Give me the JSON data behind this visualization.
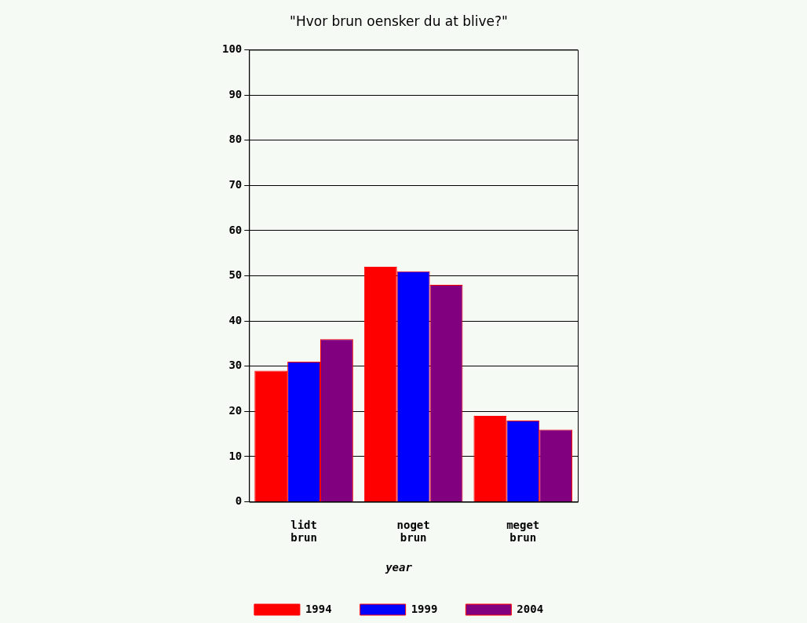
{
  "chart_data": {
    "type": "bar",
    "title": "\"Hvor brun oensker du at blive?\"",
    "categories": [
      "lidt brun",
      "noget brun",
      "meget brun"
    ],
    "series": [
      {
        "name": "1994",
        "color": "#ff0000",
        "values": [
          29,
          52,
          19
        ]
      },
      {
        "name": "1999",
        "color": "#0000ff",
        "values": [
          31,
          51,
          18
        ]
      },
      {
        "name": "2004",
        "color": "#800080",
        "values": [
          36,
          48,
          16
        ]
      }
    ],
    "ylim": [
      0,
      100
    ],
    "yticks": [
      0,
      10,
      20,
      30,
      40,
      50,
      60,
      70,
      80,
      90,
      100
    ],
    "grid": "y",
    "legend": "bottom",
    "legend_title": "year"
  }
}
